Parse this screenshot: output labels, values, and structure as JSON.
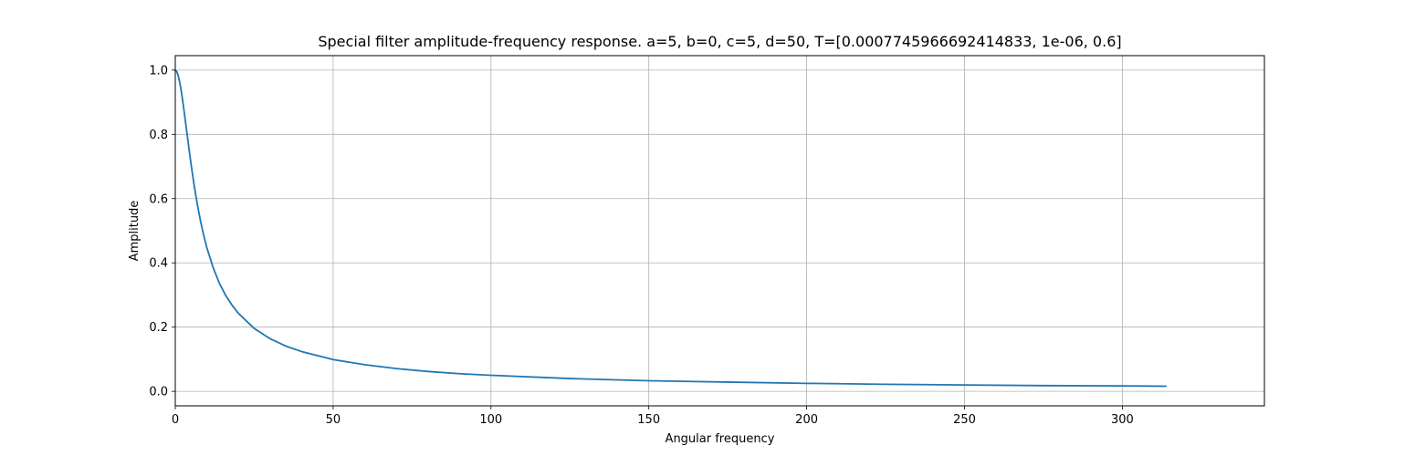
{
  "chart_data": {
    "type": "line",
    "title": "Special filter amplitude-frequency response. a=5, b=0, c=5, d=50, T=[0.0007745966692414833, 1e-06, 0.6]",
    "xlabel": "Angular frequency",
    "ylabel": "Amplitude",
    "xlim": [
      0,
      345
    ],
    "ylim": [
      -0.045,
      1.045
    ],
    "xticks": [
      0,
      50,
      100,
      150,
      200,
      250,
      300
    ],
    "xtick_labels": [
      "0",
      "50",
      "100",
      "150",
      "200",
      "250",
      "300"
    ],
    "yticks": [
      0.0,
      0.2,
      0.4,
      0.6,
      0.8,
      1.0
    ],
    "ytick_labels": [
      "0.0",
      "0.2",
      "0.4",
      "0.6",
      "0.8",
      "1.0"
    ],
    "grid": true,
    "legend": "none",
    "series": [
      {
        "color": "#1f77b4",
        "x": [
          0,
          0.5,
          1,
          1.5,
          2,
          2.5,
          3,
          3.5,
          4,
          4.5,
          5,
          6,
          7,
          8,
          9,
          10,
          12,
          14,
          16,
          18,
          20,
          25,
          30,
          35,
          40,
          50,
          60,
          70,
          80,
          90,
          100,
          125,
          150,
          175,
          200,
          225,
          250,
          275,
          300,
          314
        ],
        "y": [
          1.0,
          0.995,
          0.98,
          0.958,
          0.928,
          0.894,
          0.857,
          0.819,
          0.781,
          0.743,
          0.707,
          0.64,
          0.581,
          0.53,
          0.486,
          0.447,
          0.385,
          0.336,
          0.298,
          0.268,
          0.243,
          0.196,
          0.164,
          0.141,
          0.124,
          0.099,
          0.083,
          0.071,
          0.062,
          0.055,
          0.05,
          0.04,
          0.033,
          0.029,
          0.025,
          0.022,
          0.02,
          0.018,
          0.017,
          0.016
        ]
      }
    ]
  }
}
